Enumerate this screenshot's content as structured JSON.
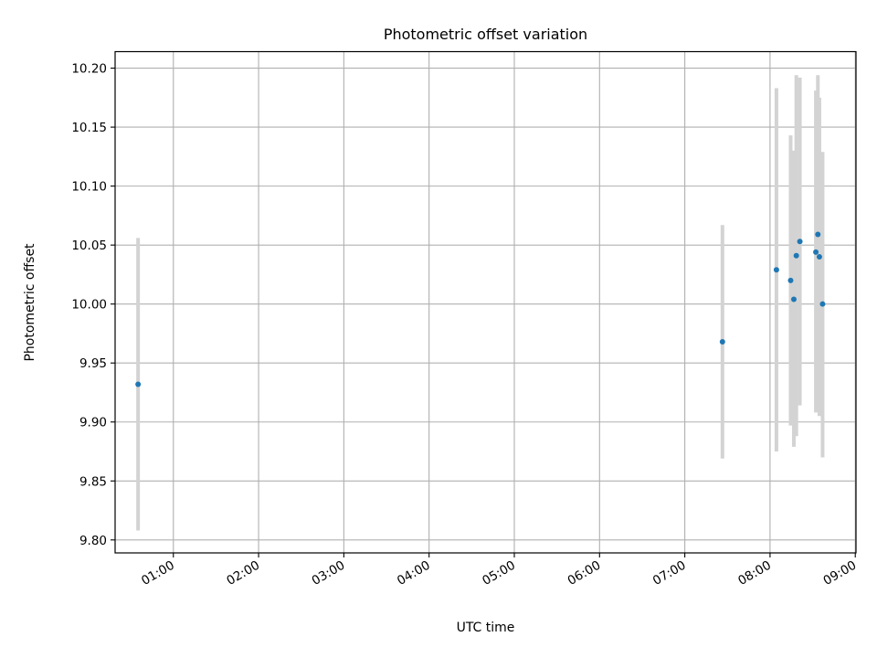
{
  "chart_data": {
    "type": "scatter",
    "title": "Photometric offset variation",
    "xlabel": "UTC time",
    "ylabel": "Photometric offset",
    "x_axis_type": "time",
    "xlim": [
      "00:19:00",
      "09:00:30"
    ],
    "ylim": [
      9.789,
      10.214
    ],
    "grid": true,
    "x_ticks": [
      "01:00",
      "02:00",
      "03:00",
      "04:00",
      "05:00",
      "06:00",
      "07:00",
      "08:00",
      "09:00"
    ],
    "y_ticks": [
      "9.80",
      "9.85",
      "9.90",
      "9.95",
      "10.00",
      "10.05",
      "10.10",
      "10.15",
      "10.20"
    ],
    "marker_color": "#1f77b4",
    "errorbar_color": "#d3d3d3",
    "points": [
      {
        "x": "00:35:10",
        "y": 9.932,
        "err_low": 9.808,
        "err_high": 10.056
      },
      {
        "x": "07:26:30",
        "y": 9.968,
        "err_low": 9.869,
        "err_high": 10.067
      },
      {
        "x": "08:04:30",
        "y": 10.029,
        "err_low": 9.875,
        "err_high": 10.183
      },
      {
        "x": "08:14:30",
        "y": 10.02,
        "err_low": 9.897,
        "err_high": 10.143
      },
      {
        "x": "08:16:45",
        "y": 10.004,
        "err_low": 9.879,
        "err_high": 10.13
      },
      {
        "x": "08:18:30",
        "y": 10.041,
        "err_low": 9.888,
        "err_high": 10.194
      },
      {
        "x": "08:21:00",
        "y": 10.053,
        "err_low": 9.914,
        "err_high": 10.192
      },
      {
        "x": "08:32:15",
        "y": 10.044,
        "err_low": 9.908,
        "err_high": 10.181
      },
      {
        "x": "08:33:40",
        "y": 10.059,
        "err_low": 9.924,
        "err_high": 10.194
      },
      {
        "x": "08:34:45",
        "y": 10.04,
        "err_low": 9.905,
        "err_high": 10.175
      },
      {
        "x": "08:37:00",
        "y": 10.0,
        "err_low": 9.87,
        "err_high": 10.129
      }
    ]
  }
}
